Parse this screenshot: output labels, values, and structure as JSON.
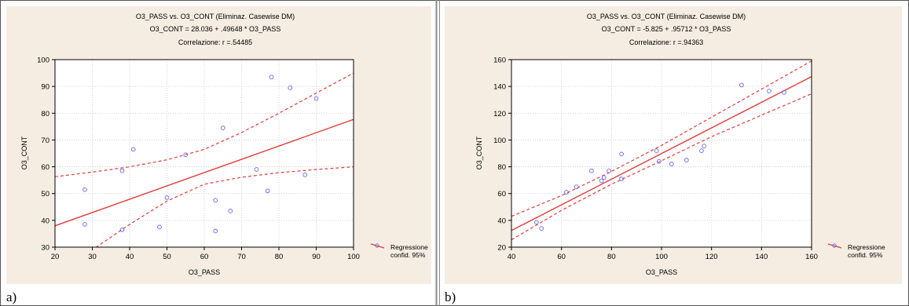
{
  "colors": {
    "panel_bg": "#f5ede2",
    "plot_bg": "#ffffff",
    "grid": "#c8c8c8",
    "fit_line": "#e33b3b",
    "ci_line": "#e33b3b",
    "point": "#6464ee"
  },
  "chart_data": [
    {
      "type": "scatter",
      "panel_label": "a)",
      "title": "O3_PASS vs. O3_CONT (Eliminaz. Casewise DM)",
      "equation": "O3_CONT = 28.036 + .49648 * O3_PASS",
      "correlation": "Correlazione: r =.54485",
      "xlabel": "O3_PASS",
      "ylabel": "O3_CONT",
      "xlim": [
        20,
        100
      ],
      "ylim": [
        30,
        100
      ],
      "xticks": [
        20,
        30,
        40,
        50,
        60,
        70,
        80,
        90,
        100
      ],
      "yticks": [
        30,
        40,
        50,
        60,
        70,
        80,
        90,
        100
      ],
      "grid": true,
      "legend_position": "right",
      "legend": [
        "Regressione",
        "confid. 95%"
      ],
      "fit": {
        "intercept": 28.036,
        "slope": 0.49648
      },
      "ci": {
        "x": [
          20,
          30,
          40,
          50,
          60,
          70,
          80,
          90,
          100
        ],
        "upper": [
          56.3,
          58.0,
          60.0,
          62.6,
          66.5,
          72.8,
          80.0,
          87.5,
          95.0
        ],
        "lower": [
          19.5,
          29.0,
          38.5,
          47.2,
          53.5,
          56.1,
          57.8,
          59.0,
          60.0
        ]
      },
      "points": {
        "x": [
          28,
          28,
          38,
          38,
          41,
          48,
          50,
          55,
          63,
          63,
          65,
          67,
          74,
          77,
          78,
          83,
          87,
          90
        ],
        "y": [
          51.5,
          38.5,
          58.5,
          36.5,
          66.5,
          37.5,
          48.5,
          64.5,
          47.5,
          36.0,
          74.5,
          43.5,
          59.0,
          51.0,
          93.5,
          89.5,
          57.0,
          85.5
        ]
      }
    },
    {
      "type": "scatter",
      "panel_label": "b)",
      "title": "O3_PASS vs. O3_CONT (Eliminaz. Casewise DM)",
      "equation": "O3_CONT = -5.825 + .95712 * O3_PASS",
      "correlation": "Correlazione: r =.94363",
      "xlabel": "O3_PASS",
      "ylabel": "O3_CONT",
      "xlim": [
        40,
        160
      ],
      "ylim": [
        20,
        160
      ],
      "xticks": [
        40,
        60,
        80,
        100,
        120,
        140,
        160
      ],
      "yticks": [
        20,
        40,
        60,
        80,
        100,
        120,
        140,
        160
      ],
      "grid": true,
      "legend_position": "right",
      "legend": [
        "Regressione",
        "confid. 95%"
      ],
      "fit": {
        "intercept": -5.825,
        "slope": 0.95712
      },
      "ci": {
        "x": [
          40,
          60,
          80,
          100,
          120,
          140,
          160
        ],
        "upper": [
          43.0,
          58.5,
          76.5,
          96.0,
          117.0,
          138.0,
          159.0
        ],
        "lower": [
          25.5,
          47.5,
          67.0,
          84.5,
          102.5,
          118.5,
          134.5
        ]
      },
      "points": {
        "x": [
          50,
          52,
          62,
          66,
          72,
          76,
          77,
          79,
          84,
          84,
          98,
          99,
          104,
          110,
          116,
          117,
          132,
          143,
          149
        ],
        "y": [
          38.5,
          34.0,
          61.0,
          65.0,
          77.0,
          69.5,
          72.0,
          77.0,
          71.0,
          89.5,
          92.0,
          84.0,
          82.0,
          85.0,
          92.0,
          95.5,
          141.0,
          136.5,
          135.5
        ]
      }
    }
  ]
}
